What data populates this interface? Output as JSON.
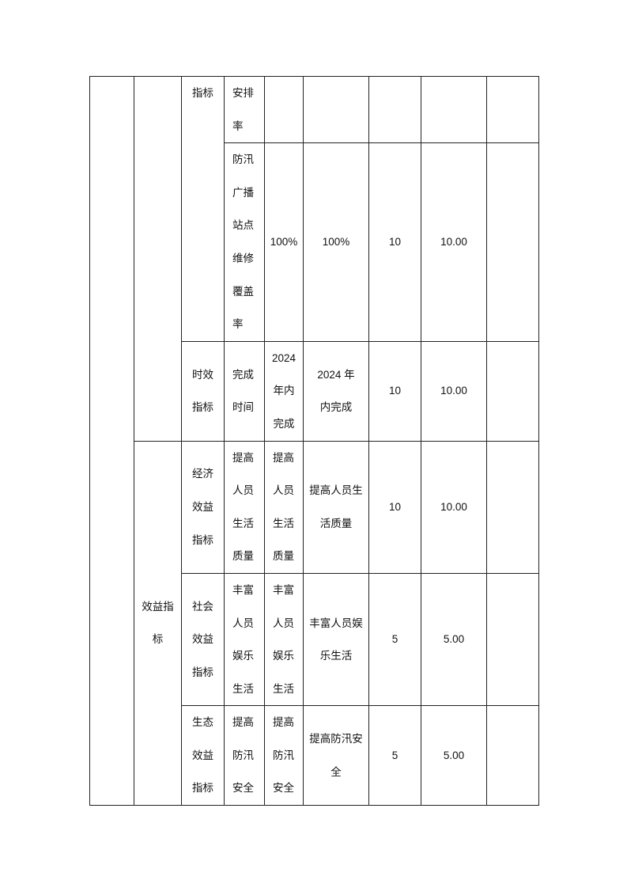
{
  "table": {
    "rows": [
      {
        "cat3": "指标",
        "indicator": "安排率",
        "target": "",
        "actual": "",
        "weight": "",
        "score": "",
        "note": ""
      },
      {
        "indicator": "防汛广播站点维修覆盖率",
        "target": "100%",
        "actual": "100%",
        "weight": "10",
        "score": "10.00",
        "note": ""
      },
      {
        "cat3": "时效指标",
        "indicator": "完成时间",
        "target": "2024年内完成",
        "actual": "2024 年内完成",
        "weight": "10",
        "score": "10.00",
        "note": ""
      },
      {
        "cat2": "效益指标",
        "cat3": "经济效益指标",
        "indicator": "提高人员生活质量",
        "target": "提高人员生活质量",
        "actual": "提高人员生活质量",
        "weight": "10",
        "score": "10.00",
        "note": ""
      },
      {
        "cat3": "社会效益指标",
        "indicator": "丰富人员娱乐生活",
        "target": "丰富人员娱乐生活",
        "actual": "丰富人员娱乐生活",
        "weight": "5",
        "score": "5.00",
        "note": ""
      },
      {
        "cat3": "生态效益指标",
        "indicator": "提高防汛安全",
        "target": "提高防汛安全",
        "actual": "提高防汛安全",
        "weight": "5",
        "score": "5.00",
        "note": ""
      }
    ]
  }
}
